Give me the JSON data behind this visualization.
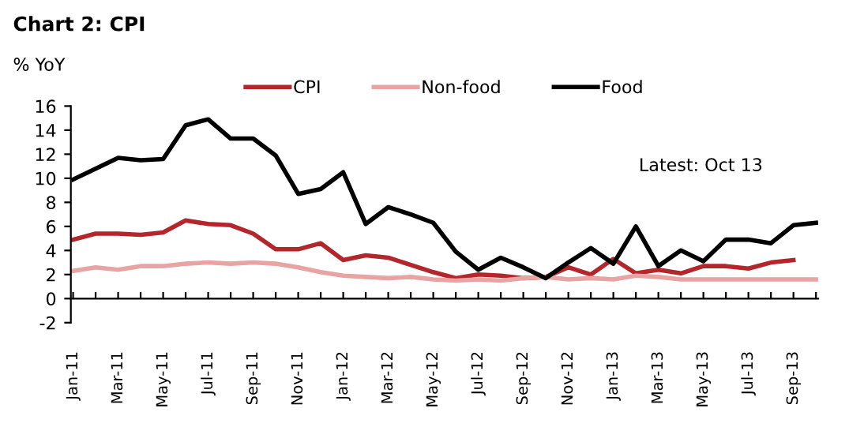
{
  "chart_data": {
    "type": "line",
    "title": "Chart 2: CPI",
    "ylabel": "% YoY",
    "categories": [
      "Jan-11",
      null,
      "Mar-11",
      null,
      "May-11",
      null,
      "Jul-11",
      null,
      "Sep-11",
      null,
      "Nov-11",
      null,
      "Jan-12",
      null,
      "Mar-12",
      null,
      "May-12",
      null,
      "Jul-12",
      null,
      "Sep-12",
      null,
      "Nov-12",
      null,
      "Jan-13",
      null,
      "Mar-13",
      null,
      "May-13",
      null,
      "Jul-13",
      null,
      "Sep-13",
      null
    ],
    "series": [
      {
        "name": "CPI",
        "color": "#b3262b",
        "values": [
          4.9,
          5.4,
          5.4,
          5.3,
          5.5,
          6.5,
          6.2,
          6.1,
          5.4,
          4.1,
          4.1,
          4.6,
          3.2,
          3.6,
          3.4,
          2.8,
          2.2,
          1.7,
          2.0,
          1.9,
          1.7,
          1.8,
          2.6,
          2.0,
          3.3,
          2.1,
          2.4,
          2.1,
          2.7,
          2.7,
          2.5,
          3.0,
          3.2,
          null
        ]
      },
      {
        "name": "Non-food",
        "color": "#e8a3a3",
        "values": [
          2.3,
          2.6,
          2.4,
          2.7,
          2.7,
          2.9,
          3.0,
          2.9,
          3.0,
          2.9,
          2.6,
          2.2,
          1.9,
          1.8,
          1.7,
          1.8,
          1.6,
          1.5,
          1.6,
          1.5,
          1.7,
          1.8,
          1.6,
          1.7,
          1.6,
          1.9,
          1.8,
          1.6,
          1.6,
          1.6,
          1.6,
          1.6,
          1.6,
          1.6
        ]
      },
      {
        "name": "Food",
        "color": "#000000",
        "values": [
          9.9,
          10.8,
          11.7,
          11.5,
          11.6,
          14.4,
          14.9,
          13.3,
          13.3,
          11.9,
          8.7,
          9.1,
          10.5,
          6.2,
          7.6,
          7.0,
          6.3,
          3.9,
          2.4,
          3.4,
          2.6,
          1.7,
          3.0,
          4.2,
          2.9,
          6.0,
          2.7,
          4.0,
          3.1,
          4.9,
          4.9,
          4.6,
          6.1,
          6.3
        ]
      }
    ],
    "ylim": [
      -2,
      16
    ],
    "yticks": [
      -2,
      0,
      2,
      4,
      6,
      8,
      10,
      12,
      14,
      16
    ],
    "legend": "top",
    "annotations": [
      "Latest: Oct 13"
    ]
  }
}
